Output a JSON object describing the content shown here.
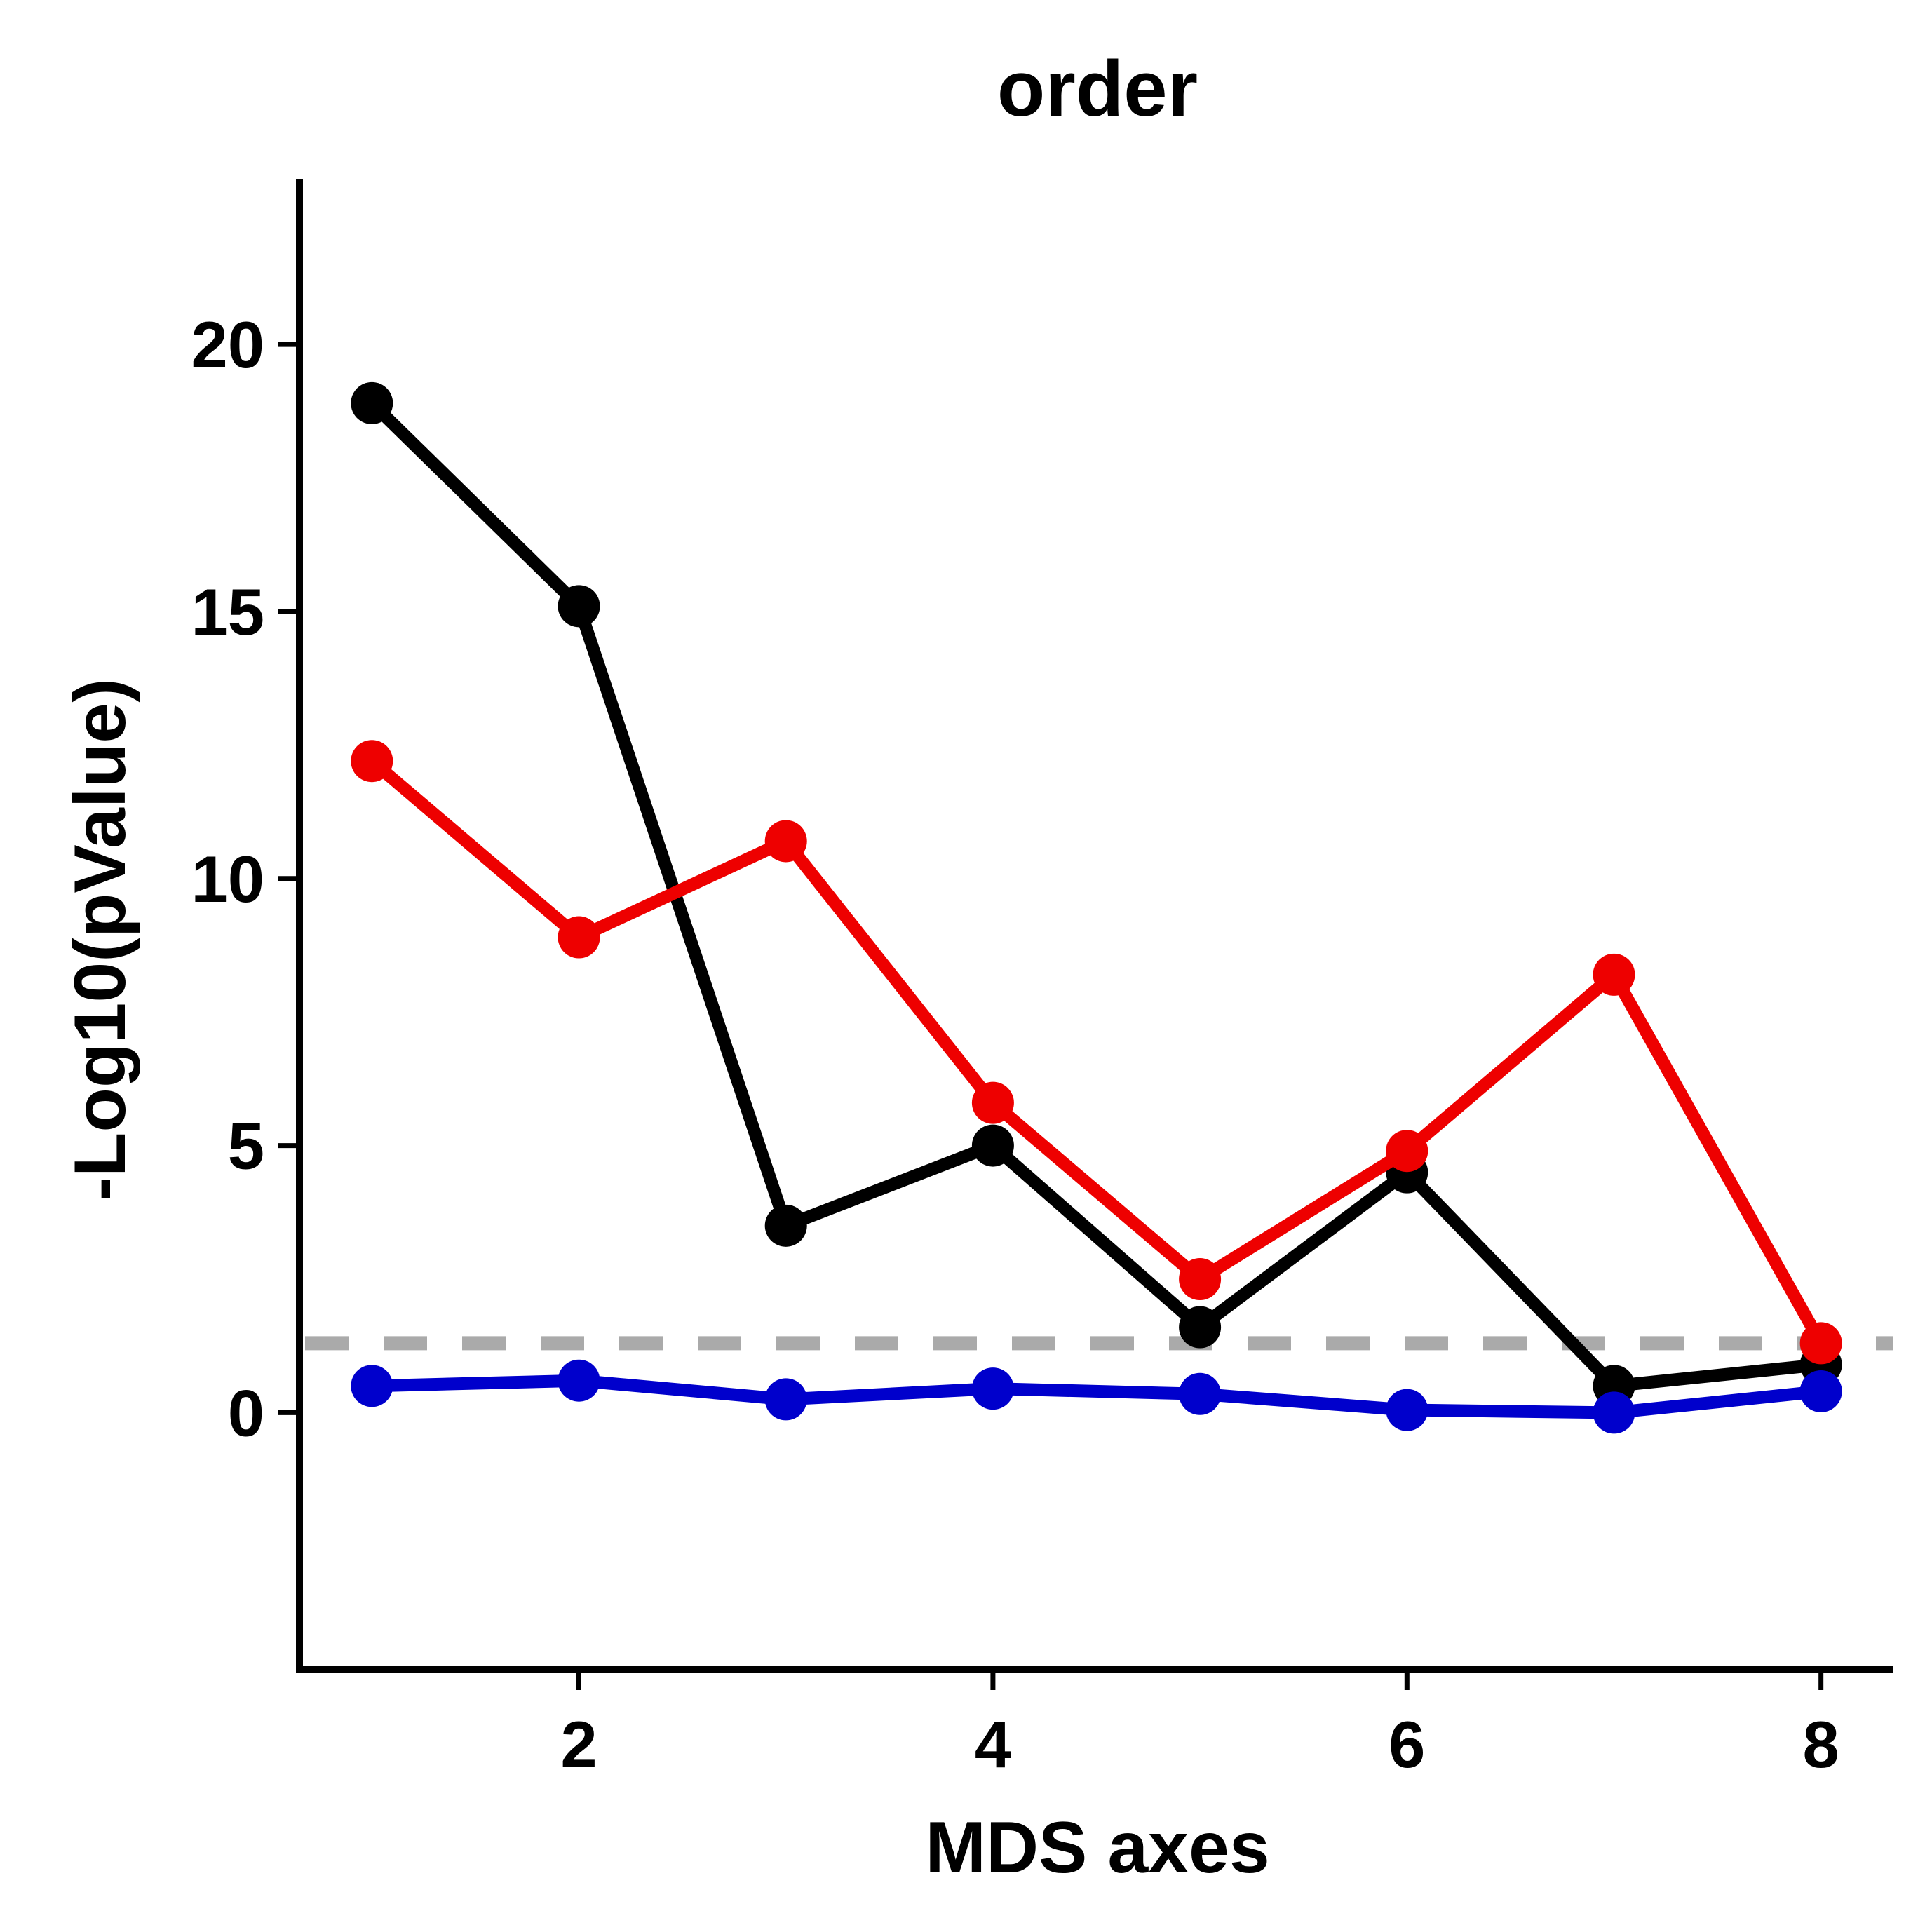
{
  "chart_data": {
    "type": "line",
    "title": "order",
    "xlabel": "MDS axes",
    "ylabel": "-Log10(pValue)",
    "xlim": [
      0.65,
      8.35
    ],
    "ylim": [
      -4.8,
      23.1
    ],
    "xticks": [
      2,
      4,
      6,
      8
    ],
    "yticks": [
      0,
      5,
      10,
      15,
      20
    ],
    "grid": false,
    "legend": "none",
    "x": [
      1,
      2,
      3,
      4,
      5,
      6,
      7,
      8
    ],
    "series": [
      {
        "color": "#000000",
        "values": [
          18.9,
          15.1,
          3.5,
          5.0,
          1.6,
          4.5,
          0.5,
          0.9
        ]
      },
      {
        "color": "#ee0000",
        "values": [
          12.2,
          8.9,
          10.7,
          5.8,
          2.5,
          4.9,
          8.2,
          1.3
        ]
      },
      {
        "color": "#0000cc",
        "values": [
          0.5,
          0.6,
          0.25,
          0.45,
          0.35,
          0.05,
          0.0,
          0.4
        ]
      }
    ],
    "reference_line": {
      "y": 1.3,
      "color": "#aaaaaa",
      "style": "dashed"
    }
  }
}
